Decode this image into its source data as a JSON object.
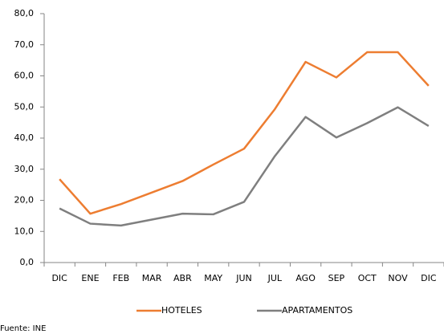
{
  "chart_data": {
    "type": "line",
    "categories": [
      "DIC",
      "ENE",
      "FEB",
      "MAR",
      "ABR",
      "MAY",
      "JUN",
      "JUL",
      "AGO",
      "SEP",
      "OCT",
      "NOV",
      "DIC"
    ],
    "series": [
      {
        "name": "HOTELES",
        "color": "#ed7d31",
        "values": [
          26.8,
          15.7,
          18.8,
          22.5,
          26.2,
          31.5,
          36.6,
          49.3,
          64.5,
          59.5,
          67.6,
          67.6,
          56.8
        ]
      },
      {
        "name": "APARTAMENTOS",
        "color": "#7f7f7f",
        "values": [
          17.4,
          12.5,
          11.9,
          13.8,
          15.7,
          15.5,
          19.5,
          34.2,
          46.8,
          40.2,
          44.8,
          49.9,
          43.9
        ]
      }
    ],
    "ylim": [
      0,
      80
    ],
    "yticks": [
      {
        "value": 0,
        "label": "0,0"
      },
      {
        "value": 10,
        "label": "10,0"
      },
      {
        "value": 20,
        "label": "20,0"
      },
      {
        "value": 30,
        "label": "30,0"
      },
      {
        "value": 40,
        "label": "40,0"
      },
      {
        "value": 50,
        "label": "50,0"
      },
      {
        "value": 60,
        "label": "60,0"
      },
      {
        "value": 70,
        "label": "70,0"
      },
      {
        "value": 80,
        "label": "80,0"
      }
    ],
    "grid": false,
    "legend": "bottom",
    "source": "Fuente: INE"
  }
}
